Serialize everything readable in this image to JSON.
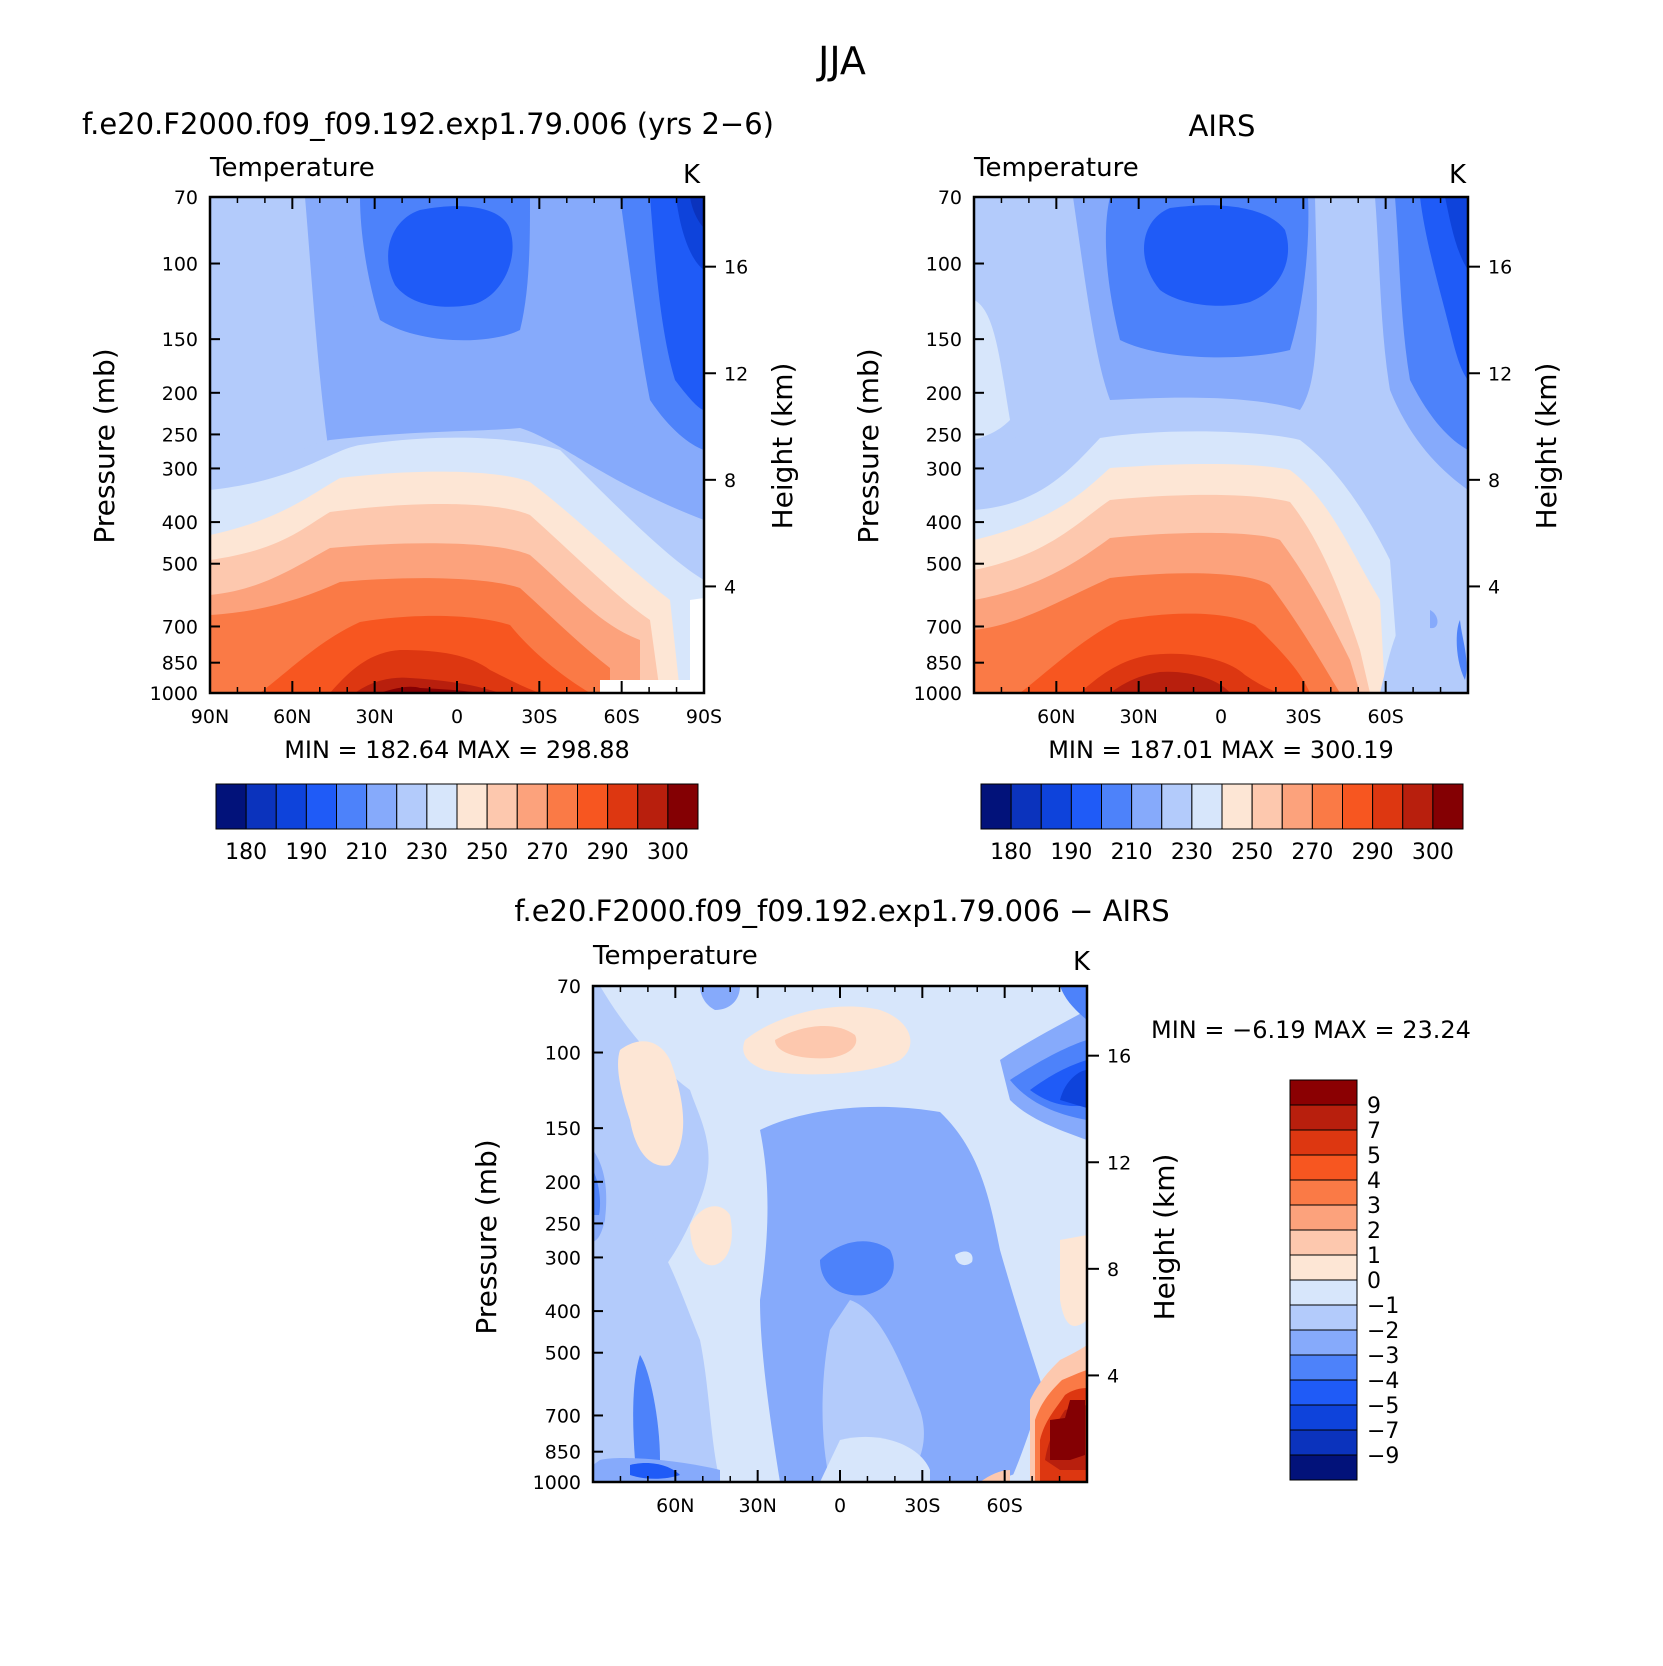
{
  "figure": {
    "title": "JJA"
  },
  "panels": [
    {
      "id": "model",
      "header": "f.e20.F2000.f09_f09.192.exp1.79.006 (yrs 2−6)",
      "subtitle": "Temperature",
      "units": "K",
      "left_axis_label": "Pressure (mb)",
      "right_axis_label": "Height (km)",
      "stats": "MIN = 182.64 MAX = 298.88"
    },
    {
      "id": "airs",
      "header": "AIRS",
      "subtitle": "Temperature",
      "units": "K",
      "left_axis_label": "Pressure (mb)",
      "right_axis_label": "Height (km)",
      "stats": "MIN = 187.01 MAX = 300.19"
    },
    {
      "id": "diff",
      "header": "f.e20.F2000.f09_f09.192.exp1.79.006 − AIRS",
      "subtitle": "Temperature",
      "units": "K",
      "left_axis_label": "Pressure (mb)",
      "right_axis_label": "Height (km)",
      "stats": "MIN = −6.19 MAX = 23.24"
    }
  ],
  "chart_data": [
    {
      "type": "heatmap",
      "panel": "model",
      "title": "f.e20.F2000.f09_f09.192.exp1.79.006 (yrs 2−6)",
      "subtitle": "Temperature",
      "units": "K",
      "xlabel": "",
      "ylabel": "Pressure (mb)",
      "ylabel_right": "Height (km)",
      "x_ticks": [
        "90N",
        "60N",
        "30N",
        "0",
        "30S",
        "60S",
        "90S"
      ],
      "x_range": [
        90,
        -90
      ],
      "y_ticks": [
        70,
        100,
        150,
        200,
        250,
        300,
        400,
        500,
        700,
        850,
        1000
      ],
      "y_range": [
        70,
        1000
      ],
      "height_ticks_km": [
        4,
        8,
        12,
        16
      ],
      "min": 182.64,
      "max": 298.88,
      "colorbar": {
        "levels": [
          180,
          185,
          190,
          200,
          210,
          220,
          230,
          240,
          250,
          260,
          270,
          280,
          290,
          295,
          300
        ],
        "labels": [
          "180",
          "190",
          "210",
          "230",
          "250",
          "270",
          "290",
          "300"
        ],
        "colors": [
          "#02127a",
          "#0b33bd",
          "#0e43db",
          "#1f5bf7",
          "#4d82fa",
          "#86aafb",
          "#b3cbfb",
          "#d7e6fb",
          "#fde6d5",
          "#fdc8ae",
          "#fca27c",
          "#fa7a46",
          "#f75620",
          "#dd3711",
          "#b81f0d",
          "#840003"
        ]
      }
    },
    {
      "type": "heatmap",
      "panel": "airs",
      "title": "AIRS",
      "subtitle": "Temperature",
      "units": "K",
      "xlabel": "",
      "ylabel": "Pressure (mb)",
      "ylabel_right": "Height (km)",
      "x_ticks": [
        "60N",
        "30N",
        "0",
        "30S",
        "60S"
      ],
      "x_range": [
        90,
        -90
      ],
      "y_ticks": [
        70,
        100,
        150,
        200,
        250,
        300,
        400,
        500,
        700,
        850,
        1000
      ],
      "y_range": [
        70,
        1000
      ],
      "height_ticks_km": [
        4,
        8,
        12,
        16
      ],
      "min": 187.01,
      "max": 300.19,
      "colorbar": {
        "levels": [
          180,
          185,
          190,
          200,
          210,
          220,
          230,
          240,
          250,
          260,
          270,
          280,
          290,
          295,
          300
        ],
        "labels": [
          "180",
          "190",
          "210",
          "230",
          "250",
          "270",
          "290",
          "300"
        ],
        "colors": [
          "#02127a",
          "#0b33bd",
          "#0e43db",
          "#1f5bf7",
          "#4d82fa",
          "#86aafb",
          "#b3cbfb",
          "#d7e6fb",
          "#fde6d5",
          "#fdc8ae",
          "#fca27c",
          "#fa7a46",
          "#f75620",
          "#dd3711",
          "#b81f0d",
          "#840003"
        ]
      }
    },
    {
      "type": "heatmap",
      "panel": "diff",
      "title": "f.e20.F2000.f09_f09.192.exp1.79.006 − AIRS",
      "subtitle": "Temperature",
      "units": "K",
      "xlabel": "",
      "ylabel": "Pressure (mb)",
      "ylabel_right": "Height (km)",
      "x_ticks": [
        "60N",
        "30N",
        "0",
        "30S",
        "60S"
      ],
      "x_range": [
        90,
        -90
      ],
      "y_ticks": [
        70,
        100,
        150,
        200,
        250,
        300,
        400,
        500,
        700,
        850,
        1000
      ],
      "y_range": [
        70,
        1000
      ],
      "height_ticks_km": [
        4,
        8,
        12,
        16
      ],
      "min": -6.19,
      "max": 23.24,
      "colorbar": {
        "orientation": "vertical",
        "levels": [
          -9,
          -7,
          -5,
          -4,
          -3,
          -2,
          -1,
          0,
          1,
          2,
          3,
          4,
          5,
          7,
          9
        ],
        "labels": [
          "9",
          "7",
          "5",
          "4",
          "3",
          "2",
          "1",
          "0",
          "−1",
          "−2",
          "−3",
          "−4",
          "−5",
          "−7",
          "−9"
        ],
        "colors": [
          "#8b0002",
          "#b81f0d",
          "#dd3711",
          "#f75620",
          "#fa7a46",
          "#fca27c",
          "#fdc8ae",
          "#fde6d5",
          "#d7e6fb",
          "#b3cbfb",
          "#86aafb",
          "#4d82fa",
          "#1f5bf7",
          "#0e43db",
          "#0b33bd",
          "#02127a"
        ]
      }
    }
  ]
}
